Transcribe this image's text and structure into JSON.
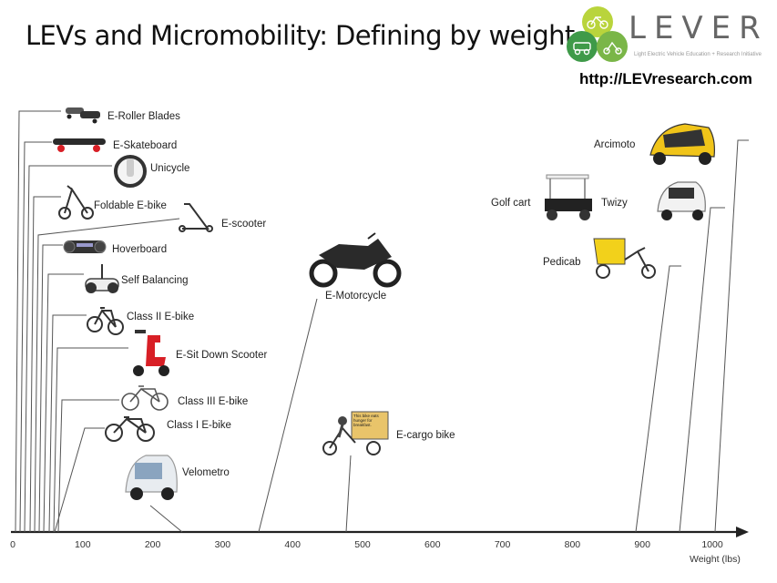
{
  "header": {
    "title": "LEVs and Micromobility: Defining by weight",
    "logo_text": "LEVER",
    "logo_tagline": "Light Electric Vehicle Education + Research Initiative",
    "url": "http://LEVresearch.com"
  },
  "axis": {
    "label": "Weight (lbs)",
    "ticks": [
      0,
      100,
      200,
      300,
      400,
      500,
      600,
      700,
      800,
      900,
      1000
    ]
  },
  "vehicles": [
    {
      "id": "roller-blades",
      "label": "E-Roller Blades",
      "icon": "roller-blades-icon"
    },
    {
      "id": "skateboard",
      "label": "E-Skateboard",
      "icon": "skateboard-icon"
    },
    {
      "id": "unicycle",
      "label": "Unicycle",
      "icon": "unicycle-icon"
    },
    {
      "id": "foldable",
      "label": "Foldable E-bike",
      "icon": "foldable-ebike-icon"
    },
    {
      "id": "escooter",
      "label": "E-scooter",
      "icon": "kick-scooter-icon"
    },
    {
      "id": "hoverboard",
      "label": "Hoverboard",
      "icon": "hoverboard-icon"
    },
    {
      "id": "selfbal",
      "label": "Self Balancing",
      "icon": "self-balancing-icon"
    },
    {
      "id": "class2",
      "label": "Class II E-bike",
      "icon": "bicycle-icon"
    },
    {
      "id": "sitdown",
      "label": "E-Sit Down Scooter",
      "icon": "sit-scooter-icon"
    },
    {
      "id": "class3",
      "label": "Class III E-bike",
      "icon": "bicycle-icon"
    },
    {
      "id": "class1",
      "label": "Class I E-bike",
      "icon": "bicycle-icon"
    },
    {
      "id": "velometro",
      "label": "Velometro",
      "icon": "velomobile-icon"
    },
    {
      "id": "emoto",
      "label": "E-Motorcycle",
      "icon": "motorcycle-icon"
    },
    {
      "id": "ecargo",
      "label": "E-cargo bike",
      "icon": "cargo-bike-icon",
      "sign_text": "This bike eats hunger for breakfast."
    },
    {
      "id": "golfcart",
      "label": "Golf cart",
      "icon": "golf-cart-icon"
    },
    {
      "id": "twizy",
      "label": "Twizy",
      "icon": "microcar-icon"
    },
    {
      "id": "pedicab",
      "label": "Pedicab",
      "icon": "pedicab-icon"
    },
    {
      "id": "arcimoto",
      "label": "Arcimoto",
      "icon": "three-wheeler-icon"
    }
  ],
  "colors": {
    "logo_green": "#7ab648",
    "logo_lime": "#b9d43c",
    "logo_dark_green": "#3f9a49",
    "motorcycle": "#2a2a2a",
    "sit_scooter": "#d81f26",
    "pedicab": "#f2d11b",
    "arcimoto": "#f0c419"
  }
}
